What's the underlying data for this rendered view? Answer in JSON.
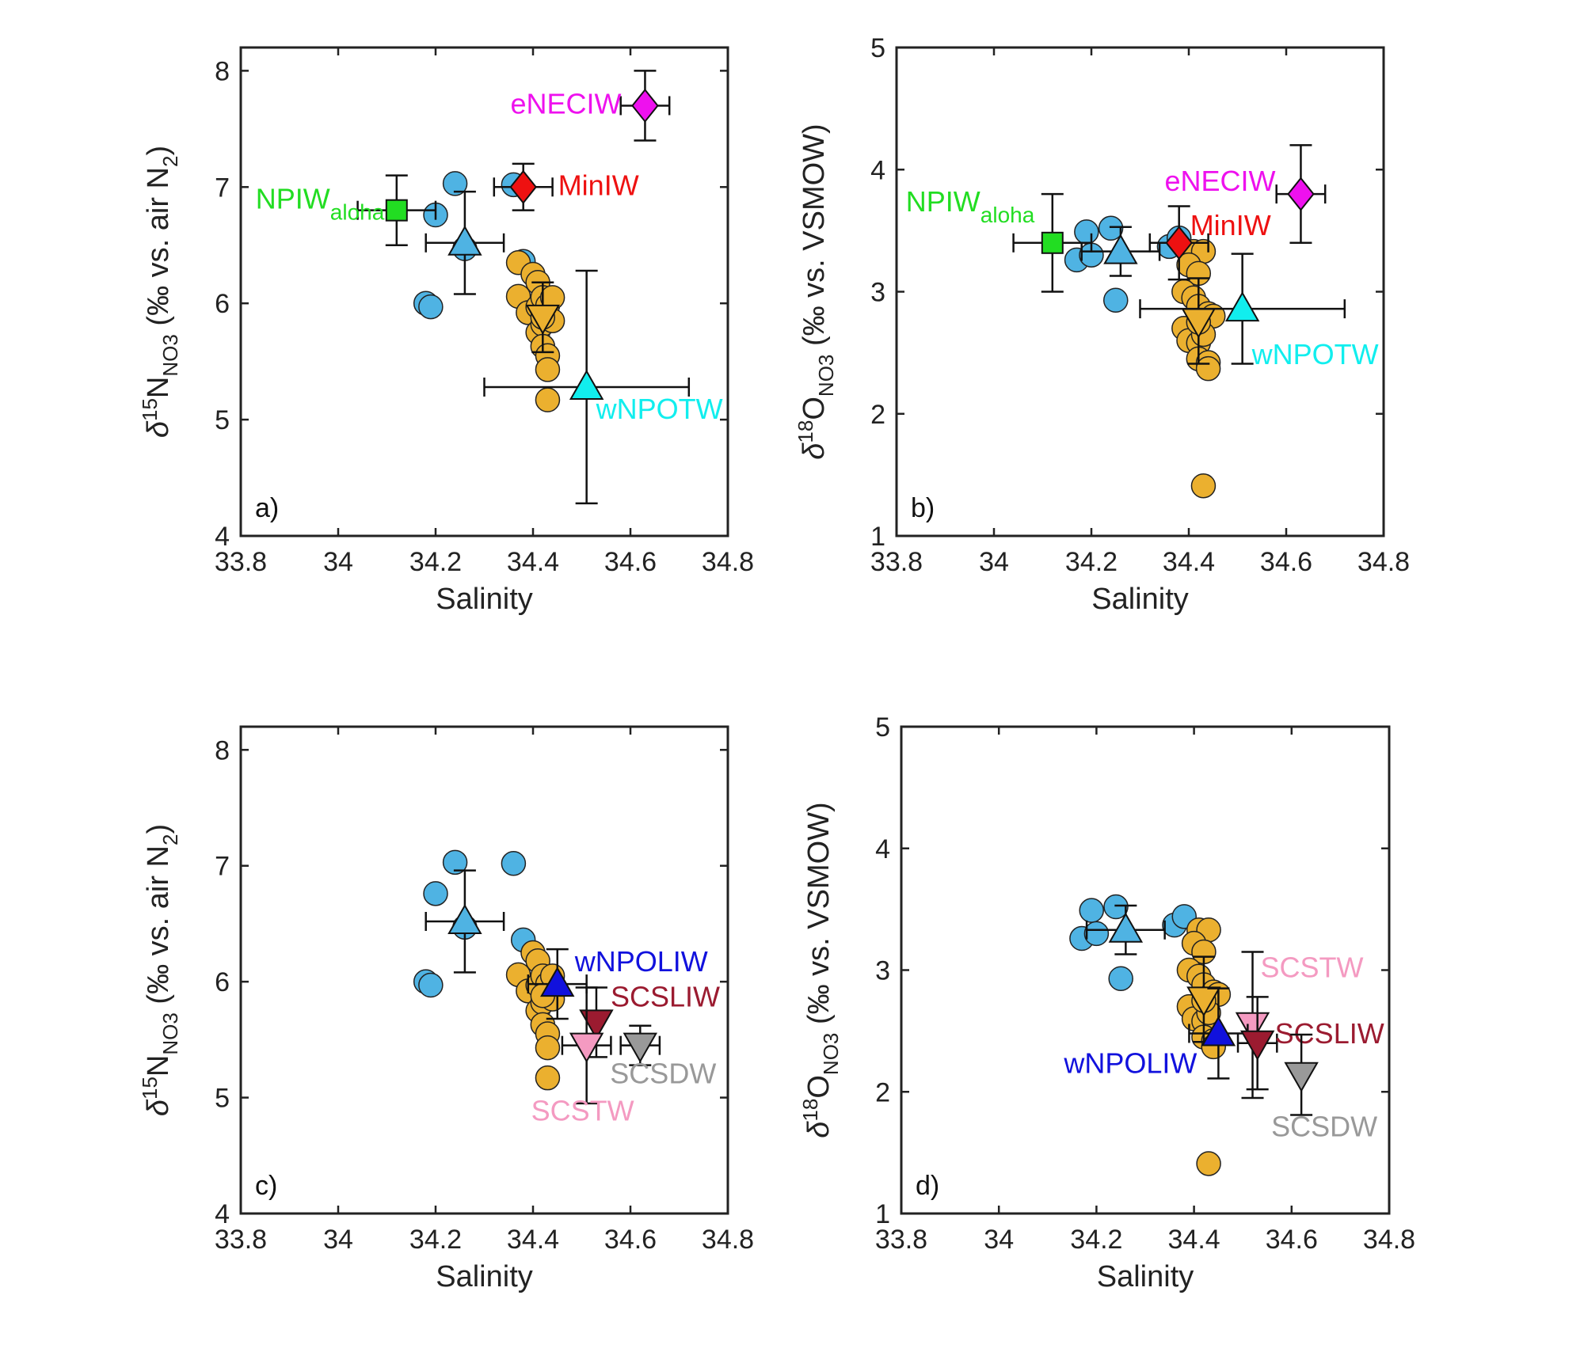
{
  "colors": {
    "station_circle": "#4fb3e3",
    "cluster_circle": "#ebb02f",
    "NPIW_aloha": "#22dd22",
    "MinIW": "#ee1111",
    "eNECIW": "#ee11ee",
    "wNPOTW": "#11eeee",
    "wNPOLIW": "#1111dd",
    "SCSLIW": "#9b1b30",
    "SCSTW": "#f49ac1",
    "SCSDW": "#999999"
  },
  "chart_data": [
    {
      "type": "scatter",
      "panel_label": "a)",
      "xlabel": "Salinity",
      "ylabel_main": "δ",
      "ylabel_sup": "15",
      "ylabel_elem": "N",
      "ylabel_sub": "NO3",
      "ylabel_rest": " (‰ vs. air N",
      "ylabel_sub2": "2",
      "ylabel_end": ")",
      "xlim": [
        33.8,
        34.8
      ],
      "ylim": [
        4,
        8.2
      ],
      "xticks": [
        "33.8",
        "34",
        "34.2",
        "34.4",
        "34.6",
        "34.8"
      ],
      "yticks": [
        "4",
        "5",
        "6",
        "7",
        "8"
      ],
      "blue_circles": [
        [
          34.18,
          6.0
        ],
        [
          34.19,
          5.97
        ],
        [
          34.2,
          6.76
        ],
        [
          34.24,
          7.03
        ],
        [
          34.26,
          6.47
        ],
        [
          34.36,
          7.02
        ],
        [
          34.38,
          6.36
        ]
      ],
      "orange_circles": [
        [
          34.37,
          6.35
        ],
        [
          34.37,
          6.06
        ],
        [
          34.39,
          5.92
        ],
        [
          34.4,
          6.25
        ],
        [
          34.41,
          6.18
        ],
        [
          34.41,
          5.97
        ],
        [
          34.42,
          6.05
        ],
        [
          34.43,
          5.98
        ],
        [
          34.44,
          6.05
        ],
        [
          34.41,
          5.75
        ],
        [
          34.42,
          5.82
        ],
        [
          34.44,
          5.85
        ],
        [
          34.42,
          5.63
        ],
        [
          34.43,
          5.55
        ],
        [
          34.43,
          5.43
        ],
        [
          34.42,
          5.88
        ],
        [
          34.43,
          5.17
        ]
      ],
      "endmembers": [
        {
          "label": "NPIW",
          "label_sub": "aloha",
          "color_key": "NPIW_aloha",
          "marker": "square",
          "x": 34.12,
          "y": 6.8,
          "xerr": 0.08,
          "yerr": 0.3
        },
        {
          "label": "",
          "color_key": "station_circle",
          "marker": "triangle-up",
          "x": 34.26,
          "y": 6.52,
          "xerr": 0.08,
          "yerr": 0.44
        },
        {
          "label": "MinIW",
          "color_key": "MinIW",
          "marker": "diamond",
          "x": 34.38,
          "y": 7.0,
          "xerr": 0.06,
          "yerr": 0.2
        },
        {
          "label": "eNECIW",
          "color_key": "eNECIW",
          "marker": "diamond",
          "x": 34.63,
          "y": 7.7,
          "xerr": 0.05,
          "yerr": 0.3
        },
        {
          "label": "",
          "color_key": "cluster_circle",
          "marker": "triangle-down",
          "x": 34.42,
          "y": 5.88,
          "xerr": 0.0,
          "yerr": 0.3
        },
        {
          "label": "wNPOTW",
          "color_key": "wNPOTW",
          "marker": "triangle-up",
          "x": 34.51,
          "y": 5.28,
          "xerr": 0.21,
          "yerr": 1.0
        }
      ]
    },
    {
      "type": "scatter",
      "panel_label": "b)",
      "xlabel": "Salinity",
      "ylabel_main": "δ",
      "ylabel_sup": "18",
      "ylabel_elem": "O",
      "ylabel_sub": "NO3",
      "ylabel_rest": " (‰ vs. VSMOW)",
      "ylabel_sub2": "",
      "ylabel_end": "",
      "xlim": [
        33.8,
        34.8
      ],
      "ylim": [
        1,
        5
      ],
      "xticks": [
        "33.8",
        "34",
        "34.2",
        "34.4",
        "34.6",
        "34.8"
      ],
      "yticks": [
        "1",
        "2",
        "3",
        "4",
        "5"
      ],
      "blue_circles": [
        [
          34.17,
          3.26
        ],
        [
          34.19,
          3.49
        ],
        [
          34.2,
          3.3
        ],
        [
          34.24,
          3.52
        ],
        [
          34.25,
          2.93
        ],
        [
          34.36,
          3.37
        ],
        [
          34.38,
          3.44
        ]
      ],
      "orange_circles": [
        [
          34.41,
          3.33
        ],
        [
          34.43,
          3.33
        ],
        [
          34.4,
          3.22
        ],
        [
          34.42,
          3.15
        ],
        [
          34.39,
          3.0
        ],
        [
          34.41,
          2.95
        ],
        [
          34.42,
          2.88
        ],
        [
          34.44,
          2.82
        ],
        [
          34.45,
          2.8
        ],
        [
          34.39,
          2.7
        ],
        [
          34.4,
          2.6
        ],
        [
          34.42,
          2.58
        ],
        [
          34.43,
          2.65
        ],
        [
          34.42,
          2.45
        ],
        [
          34.44,
          2.42
        ],
        [
          34.44,
          2.37
        ],
        [
          34.42,
          2.75
        ],
        [
          34.43,
          1.41
        ]
      ],
      "endmembers": [
        {
          "label": "NPIW",
          "label_sub": "aloha",
          "color_key": "NPIW_aloha",
          "marker": "square",
          "x": 34.12,
          "y": 3.4,
          "xerr": 0.08,
          "yerr": 0.4
        },
        {
          "label": "",
          "color_key": "station_circle",
          "marker": "triangle-up",
          "x": 34.26,
          "y": 3.33,
          "xerr": 0.08,
          "yerr": 0.2
        },
        {
          "label": "MinIW",
          "color_key": "MinIW",
          "marker": "diamond",
          "x": 34.38,
          "y": 3.4,
          "xerr": 0.06,
          "yerr": 0.3
        },
        {
          "label": "eNECIW",
          "color_key": "eNECIW",
          "marker": "diamond",
          "x": 34.63,
          "y": 3.8,
          "xerr": 0.05,
          "yerr": 0.4
        },
        {
          "label": "",
          "color_key": "cluster_circle",
          "marker": "triangle-down",
          "x": 34.42,
          "y": 2.76,
          "xerr": 0.0,
          "yerr": 0.35
        },
        {
          "label": "wNPOTW",
          "color_key": "wNPOTW",
          "marker": "triangle-up",
          "x": 34.51,
          "y": 2.86,
          "xerr": 0.21,
          "yerr": 0.45
        }
      ]
    },
    {
      "type": "scatter",
      "panel_label": "c)",
      "xlabel": "Salinity",
      "ylabel_main": "δ",
      "ylabel_sup": "15",
      "ylabel_elem": "N",
      "ylabel_sub": "NO3",
      "ylabel_rest": " (‰ vs. air N",
      "ylabel_sub2": "2",
      "ylabel_end": ")",
      "xlim": [
        33.8,
        34.8
      ],
      "ylim": [
        4,
        8.2
      ],
      "xticks": [
        "33.8",
        "34",
        "34.2",
        "34.4",
        "34.6",
        "34.8"
      ],
      "yticks": [
        "4",
        "5",
        "6",
        "7",
        "8"
      ],
      "blue_circles": [
        [
          34.18,
          6.0
        ],
        [
          34.19,
          5.97
        ],
        [
          34.2,
          6.76
        ],
        [
          34.24,
          7.03
        ],
        [
          34.26,
          6.47
        ],
        [
          34.36,
          7.02
        ],
        [
          34.38,
          6.36
        ]
      ],
      "orange_circles": [
        [
          34.37,
          6.06
        ],
        [
          34.39,
          5.92
        ],
        [
          34.4,
          6.25
        ],
        [
          34.41,
          6.18
        ],
        [
          34.41,
          5.97
        ],
        [
          34.42,
          6.05
        ],
        [
          34.43,
          5.98
        ],
        [
          34.44,
          6.05
        ],
        [
          34.41,
          5.75
        ],
        [
          34.42,
          5.82
        ],
        [
          34.44,
          5.85
        ],
        [
          34.42,
          5.63
        ],
        [
          34.43,
          5.55
        ],
        [
          34.43,
          5.43
        ],
        [
          34.42,
          5.88
        ],
        [
          34.43,
          5.17
        ]
      ],
      "endmembers": [
        {
          "label": "",
          "color_key": "station_circle",
          "marker": "triangle-up",
          "x": 34.26,
          "y": 6.52,
          "xerr": 0.08,
          "yerr": 0.44
        },
        {
          "label": "wNPOLIW",
          "color_key": "wNPOLIW",
          "marker": "triangle-up",
          "x": 34.45,
          "y": 5.98,
          "xerr": 0.06,
          "yerr": 0.3
        },
        {
          "label": "SCSLIW",
          "color_key": "SCSLIW",
          "marker": "triangle-down",
          "x": 34.53,
          "y": 5.65,
          "xerr": 0.0,
          "yerr": 0.3
        },
        {
          "label": "SCSTW",
          "color_key": "SCSTW",
          "marker": "triangle-down",
          "x": 34.51,
          "y": 5.45,
          "xerr": 0.05,
          "yerr": 0.5
        },
        {
          "label": "SCSDW",
          "color_key": "SCSDW",
          "marker": "triangle-down",
          "x": 34.62,
          "y": 5.45,
          "xerr": 0.04,
          "yerr": 0.17
        }
      ]
    },
    {
      "type": "scatter",
      "panel_label": "d)",
      "xlabel": "Salinity",
      "ylabel_main": "δ",
      "ylabel_sup": "18",
      "ylabel_elem": "O",
      "ylabel_sub": "NO3",
      "ylabel_rest": " (‰ vs. VSMOW)",
      "ylabel_sub2": "",
      "ylabel_end": "",
      "xlim": [
        33.8,
        34.8
      ],
      "ylim": [
        1,
        5
      ],
      "xticks": [
        "33.8",
        "34",
        "34.2",
        "34.4",
        "34.6",
        "34.8"
      ],
      "yticks": [
        "1",
        "2",
        "3",
        "4",
        "5"
      ],
      "blue_circles": [
        [
          34.17,
          3.26
        ],
        [
          34.19,
          3.49
        ],
        [
          34.2,
          3.3
        ],
        [
          34.24,
          3.52
        ],
        [
          34.25,
          2.93
        ],
        [
          34.36,
          3.37
        ],
        [
          34.38,
          3.44
        ]
      ],
      "orange_circles": [
        [
          34.41,
          3.33
        ],
        [
          34.43,
          3.33
        ],
        [
          34.4,
          3.22
        ],
        [
          34.42,
          3.15
        ],
        [
          34.39,
          3.0
        ],
        [
          34.41,
          2.95
        ],
        [
          34.42,
          2.88
        ],
        [
          34.44,
          2.82
        ],
        [
          34.45,
          2.8
        ],
        [
          34.39,
          2.7
        ],
        [
          34.4,
          2.6
        ],
        [
          34.42,
          2.58
        ],
        [
          34.43,
          2.65
        ],
        [
          34.42,
          2.45
        ],
        [
          34.44,
          2.42
        ],
        [
          34.44,
          2.37
        ],
        [
          34.42,
          2.75
        ],
        [
          34.43,
          1.41
        ]
      ],
      "endmembers": [
        {
          "label": "",
          "color_key": "station_circle",
          "marker": "triangle-up",
          "x": 34.26,
          "y": 3.33,
          "xerr": 0.08,
          "yerr": 0.2
        },
        {
          "label": "",
          "color_key": "cluster_circle",
          "marker": "triangle-down",
          "x": 34.42,
          "y": 2.76,
          "xerr": 0.0,
          "yerr": 0.35
        },
        {
          "label": "SCSTW",
          "color_key": "SCSTW",
          "marker": "triangle-down",
          "x": 34.52,
          "y": 2.55,
          "xerr": 0.0,
          "yerr": 0.6
        },
        {
          "label": "wNPOLIW",
          "color_key": "wNPOLIW",
          "marker": "triangle-up",
          "x": 34.45,
          "y": 2.48,
          "xerr": 0.06,
          "yerr": 0.37
        },
        {
          "label": "SCSLIW",
          "color_key": "SCSLIW",
          "marker": "triangle-down",
          "x": 34.53,
          "y": 2.4,
          "xerr": 0.04,
          "yerr": 0.38
        },
        {
          "label": "SCSDW",
          "color_key": "SCSDW",
          "marker": "triangle-down",
          "x": 34.62,
          "y": 2.14,
          "xerr": 0.0,
          "yerr": 0.33
        }
      ]
    }
  ]
}
